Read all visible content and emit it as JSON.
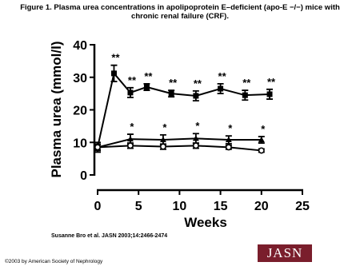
{
  "chart_data": {
    "type": "line",
    "title": "Figure 1. Plasma urea concentrations in apolipoprotein E–deficient (apo-E −/−) mice with chronic renal failure (CRF).",
    "y_label": "Plasma urea (mmol/l)",
    "x_label": "Weeks",
    "xlim": [
      0,
      25
    ],
    "xticks": [
      0,
      5,
      10,
      15,
      20,
      25
    ],
    "ylim": [
      0,
      40
    ],
    "yticks": [
      0,
      10,
      20,
      30,
      40
    ],
    "series": [
      {
        "color": "#000000",
        "marker": "square",
        "x": [
          0,
          2,
          4,
          6,
          9,
          12,
          15,
          18,
          21
        ],
        "values": [
          8.5,
          31.2,
          25.3,
          27,
          25,
          24.3,
          26.5,
          24.5,
          24.8
        ],
        "errors": [
          1,
          2.5,
          1.5,
          1,
          1,
          1.5,
          1.5,
          1.5,
          1.5
        ],
        "point_labels": [
          null,
          "**",
          "**",
          "**",
          "**",
          "**",
          "**",
          "**",
          "**"
        ]
      },
      {
        "color": "#000000",
        "marker": "triangle",
        "x": [
          0,
          4,
          8,
          12,
          16,
          20
        ],
        "values": [
          8.5,
          11,
          10.8,
          11.2,
          10.8,
          10.8
        ],
        "errors": [
          1.5,
          1.5,
          1.5,
          1.5,
          1.2,
          1
        ],
        "point_labels": [
          null,
          "*",
          "*",
          "*",
          "*",
          "*"
        ]
      },
      {
        "color": "#000000",
        "marker": "circle",
        "x": [
          0,
          4,
          8,
          12,
          16,
          20
        ],
        "values": [
          8.5,
          9,
          8.7,
          9,
          8.5,
          7.5
        ],
        "errors": [
          0.8,
          0.8,
          0.8,
          0.8,
          0.6,
          0.5
        ]
      }
    ],
    "citation": "Susanne Bro et al. JASN 2003;14:2466-2474",
    "copyright": "©2003 by American Society of Nephrology",
    "logo": "JASN"
  }
}
